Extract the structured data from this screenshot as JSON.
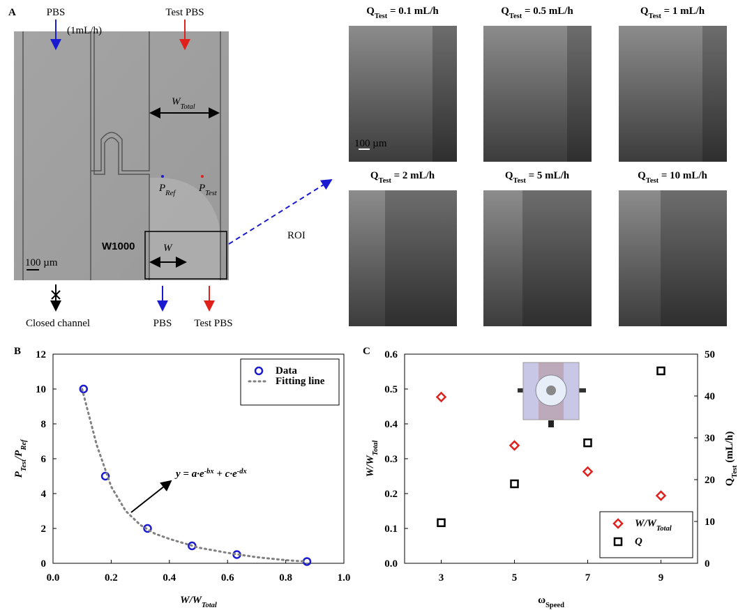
{
  "panel_a": {
    "label": "A",
    "inlet_left": "PBS",
    "inlet_left_rate": "(1mL/h)",
    "inlet_right": "Test PBS",
    "width_total": [
      {
        "t": "W"
      },
      {
        "s": "Total"
      }
    ],
    "p_ref": [
      {
        "t": "P"
      },
      {
        "s": "Ref"
      }
    ],
    "p_test": [
      {
        "t": "P"
      },
      {
        "s": "Test"
      }
    ],
    "width": "W",
    "chip_mark": "W1000",
    "scale_bar": "100 µm",
    "outlet_closed": "Closed channel",
    "outlet_left": "PBS",
    "outlet_right": "Test PBS",
    "roi": "ROI",
    "roi_images": [
      {
        "title": [
          {
            "t": "Q"
          },
          {
            "s": "Test"
          },
          {
            "t": " = 0.1 mL/h"
          }
        ]
      },
      {
        "title": [
          {
            "t": "Q"
          },
          {
            "s": "Test"
          },
          {
            "t": " = 0.5 mL/h"
          }
        ]
      },
      {
        "title": [
          {
            "t": "Q"
          },
          {
            "s": "Test"
          },
          {
            "t": " = 1 mL/h"
          }
        ]
      },
      {
        "title": [
          {
            "t": "Q"
          },
          {
            "s": "Test"
          },
          {
            "t": " = 2 mL/h"
          }
        ]
      },
      {
        "title": [
          {
            "t": "Q"
          },
          {
            "s": "Test"
          },
          {
            "t": " = 5 mL/h"
          }
        ]
      },
      {
        "title": [
          {
            "t": "Q"
          },
          {
            "s": "Test"
          },
          {
            "t": " = 10 mL/h"
          }
        ]
      }
    ],
    "roi_scale_bar": "100 µm"
  },
  "chart_data": [
    {
      "type": "scatter",
      "label": "B",
      "xlabel": [
        {
          "t": "W/W"
        },
        {
          "s": "Total"
        }
      ],
      "ylabel": [
        {
          "t": "P"
        },
        {
          "s": "Test"
        },
        {
          "t": "/P"
        },
        {
          "s": "Ref"
        }
      ],
      "series": [
        {
          "name": "Data",
          "color": "#1a1ad0",
          "marker": "circle",
          "x": [
            0.105,
            0.18,
            0.325,
            0.478,
            0.632,
            0.873
          ],
          "values": [
            10,
            5,
            2,
            1,
            0.5,
            0.1
          ]
        },
        {
          "name": "Fitting line",
          "color": "#808080",
          "type": "line",
          "x": [
            0.1,
            0.15,
            0.2,
            0.25,
            0.3,
            0.35,
            0.4,
            0.5,
            0.6,
            0.7,
            0.8,
            0.87
          ],
          "values": [
            10,
            6.8,
            4.4,
            3.0,
            2.2,
            1.7,
            1.4,
            0.9,
            0.6,
            0.35,
            0.18,
            0.1
          ]
        }
      ],
      "xlim": [
        0,
        1
      ],
      "xticks": [
        {
          "value": 0,
          "label": "0.0"
        },
        {
          "value": 0.2,
          "label": "0.2"
        },
        {
          "value": 0.4,
          "label": "0.4"
        },
        {
          "value": 0.6,
          "label": "0.6"
        },
        {
          "value": 0.8,
          "label": "0.8"
        },
        {
          "value": 1,
          "label": "1.0"
        }
      ],
      "ylim": [
        0,
        12
      ],
      "yticks": [
        0,
        2,
        4,
        6,
        8,
        10,
        12
      ],
      "legend": "upper right",
      "annotation": [
        {
          "t": "y = a·e"
        },
        {
          "p": "-bx"
        },
        {
          "t": " + c·e"
        },
        {
          "p": "-dx"
        }
      ]
    },
    {
      "type": "scatter",
      "label": "C",
      "xlabel": [
        {
          "t": "ω"
        },
        {
          "s": "Speed"
        }
      ],
      "ylabel": [
        {
          "t": "W/W"
        },
        {
          "s": "Total"
        }
      ],
      "y2label": [
        {
          "t": "Q"
        },
        {
          "s": "Test"
        },
        {
          "t": " (mL/h)"
        }
      ],
      "x": [
        3,
        5,
        7,
        9
      ],
      "series": [
        {
          "name": [
            {
              "t": "W/W"
            },
            {
              "s": "Total"
            }
          ],
          "color": "#e0201b",
          "marker": "diamond",
          "values": [
            0.477,
            0.338,
            0.263,
            0.194
          ]
        },
        {
          "name": [
            {
              "t": "Q"
            }
          ],
          "color": "#000000",
          "marker": "square",
          "axis": "y2",
          "values": [
            9.7,
            19,
            28.8,
            46
          ]
        }
      ],
      "xlim": [
        2,
        10
      ],
      "xticks": [
        3,
        5,
        7,
        9
      ],
      "ylim": [
        0,
        0.6
      ],
      "yticks": [
        {
          "value": 0,
          "label": "0.0"
        },
        {
          "value": 0.1,
          "label": "0.1"
        },
        {
          "value": 0.2,
          "label": "0.2"
        },
        {
          "value": 0.3,
          "label": "0.3"
        },
        {
          "value": 0.4,
          "label": "0.4"
        },
        {
          "value": 0.5,
          "label": "0.5"
        },
        {
          "value": 0.6,
          "label": "0.6"
        }
      ],
      "y2lim": [
        0,
        50
      ],
      "y2ticks": [
        0,
        10,
        20,
        30,
        40,
        50
      ],
      "legend": "lower right"
    }
  ]
}
